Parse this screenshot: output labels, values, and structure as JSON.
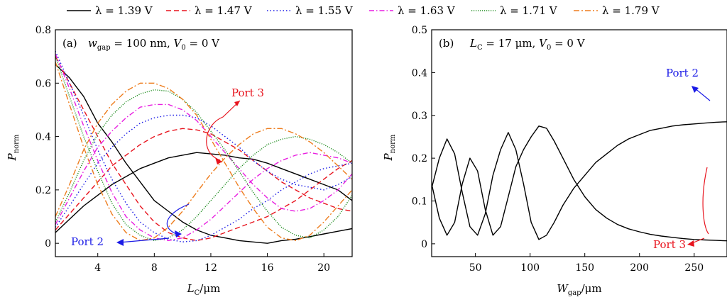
{
  "legend": {
    "items": [
      {
        "label": "λ = 1.39 V",
        "color": "#000000",
        "dash": "solid"
      },
      {
        "label": "λ = 1.47 V",
        "color": "#e8141e",
        "dash": "dash"
      },
      {
        "label": "λ = 1.55 V",
        "color": "#1a1ae6",
        "dash": "dot"
      },
      {
        "label": "λ = 1.63 V",
        "color": "#e81ee0",
        "dash": "dashdot"
      },
      {
        "label": "λ = 1.71 V",
        "color": "#1e8c1e",
        "dash": "densedot"
      },
      {
        "label": "λ = 1.79 V",
        "color": "#ee7d1e",
        "dash": "dashdot2"
      }
    ]
  },
  "chart_data": [
    {
      "type": "line",
      "panel_label": "(a)",
      "panel_text": "w_gap = 100 nm, V_0 = 0 V",
      "xlabel": "L_C/μm",
      "ylabel": "P_norm",
      "xlim": [
        1,
        22
      ],
      "ylim": [
        -0.05,
        0.8
      ],
      "xticks": [
        "4",
        "8",
        "12",
        "16",
        "20"
      ],
      "yticks": [
        "0",
        "0.2",
        "0.4",
        "0.6",
        "0.8"
      ],
      "annotations": [
        {
          "text": "Port 3",
          "color": "#e8141e"
        },
        {
          "text": "Port 2",
          "color": "#1a1ae6"
        }
      ],
      "x": [
        1,
        2,
        3,
        4,
        5,
        6,
        7,
        8,
        9,
        10,
        11,
        12,
        13,
        14,
        15,
        16,
        17,
        18,
        19,
        20,
        21,
        22
      ],
      "series": [
        {
          "port": "Port 3",
          "values": [
            0.04,
            0.09,
            0.14,
            0.18,
            0.22,
            0.25,
            0.28,
            0.3,
            0.32,
            0.33,
            0.34,
            0.335,
            0.33,
            0.32,
            0.315,
            0.3,
            0.28,
            0.26,
            0.24,
            0.22,
            0.2,
            0.16
          ]
        },
        {
          "port": "Port 2",
          "values": [
            0.67,
            0.62,
            0.55,
            0.45,
            0.38,
            0.3,
            0.23,
            0.16,
            0.12,
            0.08,
            0.05,
            0.03,
            0.02,
            0.01,
            0.005,
            0.0,
            0.01,
            0.015,
            0.025,
            0.035,
            0.045,
            0.055
          ]
        },
        {
          "port": "Port 3",
          "values": [
            0.05,
            0.11,
            0.17,
            0.23,
            0.29,
            0.33,
            0.37,
            0.4,
            0.42,
            0.43,
            0.425,
            0.41,
            0.38,
            0.35,
            0.31,
            0.27,
            0.23,
            0.2,
            0.17,
            0.15,
            0.13,
            0.12
          ]
        },
        {
          "port": "Port 2",
          "values": [
            0.7,
            0.6,
            0.5,
            0.4,
            0.3,
            0.22,
            0.14,
            0.08,
            0.04,
            0.02,
            0.01,
            0.02,
            0.04,
            0.06,
            0.08,
            0.1,
            0.13,
            0.16,
            0.2,
            0.24,
            0.28,
            0.31
          ]
        },
        {
          "port": "Port 3",
          "values": [
            0.06,
            0.14,
            0.22,
            0.3,
            0.36,
            0.41,
            0.45,
            0.47,
            0.48,
            0.48,
            0.47,
            0.44,
            0.4,
            0.36,
            0.31,
            0.27,
            0.24,
            0.22,
            0.21,
            0.2,
            0.22,
            0.25
          ]
        },
        {
          "port": "Port 2",
          "values": [
            0.72,
            0.6,
            0.48,
            0.35,
            0.24,
            0.15,
            0.08,
            0.04,
            0.015,
            0.005,
            0.01,
            0.03,
            0.06,
            0.09,
            0.13,
            0.16,
            0.2,
            0.23,
            0.26,
            0.28,
            0.29,
            0.3
          ]
        },
        {
          "port": "Port 3",
          "values": [
            0.07,
            0.17,
            0.27,
            0.36,
            0.42,
            0.47,
            0.51,
            0.52,
            0.52,
            0.5,
            0.46,
            0.4,
            0.34,
            0.28,
            0.22,
            0.17,
            0.13,
            0.12,
            0.13,
            0.16,
            0.2,
            0.26
          ]
        },
        {
          "port": "Port 2",
          "values": [
            0.71,
            0.58,
            0.44,
            0.31,
            0.19,
            0.1,
            0.05,
            0.02,
            0.01,
            0.02,
            0.05,
            0.09,
            0.14,
            0.19,
            0.24,
            0.28,
            0.31,
            0.33,
            0.34,
            0.33,
            0.32,
            0.3
          ]
        },
        {
          "port": "Port 3",
          "values": [
            0.08,
            0.19,
            0.31,
            0.41,
            0.48,
            0.53,
            0.56,
            0.575,
            0.57,
            0.54,
            0.49,
            0.42,
            0.35,
            0.27,
            0.19,
            0.12,
            0.06,
            0.03,
            0.02,
            0.05,
            0.1,
            0.18
          ]
        },
        {
          "port": "Port 2",
          "values": [
            0.7,
            0.55,
            0.4,
            0.27,
            0.15,
            0.07,
            0.03,
            0.01,
            0.02,
            0.05,
            0.1,
            0.16,
            0.22,
            0.28,
            0.33,
            0.37,
            0.39,
            0.4,
            0.39,
            0.37,
            0.34,
            0.3
          ]
        },
        {
          "port": "Port 3",
          "values": [
            0.1,
            0.22,
            0.35,
            0.45,
            0.52,
            0.57,
            0.6,
            0.6,
            0.58,
            0.54,
            0.48,
            0.39,
            0.3,
            0.21,
            0.13,
            0.06,
            0.02,
            0.01,
            0.03,
            0.08,
            0.14,
            0.2
          ]
        },
        {
          "port": "Port 2",
          "values": [
            0.68,
            0.52,
            0.36,
            0.22,
            0.11,
            0.04,
            0.01,
            0.02,
            0.06,
            0.12,
            0.19,
            0.26,
            0.32,
            0.37,
            0.41,
            0.43,
            0.43,
            0.41,
            0.38,
            0.34,
            0.29,
            0.24
          ]
        }
      ]
    },
    {
      "type": "line",
      "panel_label": "(b)",
      "panel_text": "L_C = 17 μm, V_0 = 0 V",
      "xlabel": "W_gap/μm",
      "ylabel": "P_norm",
      "xlim": [
        10,
        280
      ],
      "ylim": [
        -0.03,
        0.5
      ],
      "xticks": [
        "50",
        "100",
        "150",
        "200",
        "250"
      ],
      "yticks": [
        "0",
        "0.1",
        "0.2",
        "0.3",
        "0.4",
        "0.5"
      ],
      "annotations": [
        {
          "text": "Port 2",
          "color": "#1a1ae6"
        },
        {
          "text": "Port 3",
          "color": "#e8141e"
        }
      ],
      "series": [
        {
          "port": "Port 3",
          "x": [
            10,
            17,
            24,
            31,
            38,
            45,
            52,
            59,
            66,
            73,
            80,
            87,
            94,
            101,
            108,
            115,
            122,
            130,
            140,
            150,
            160,
            170,
            180,
            190,
            200,
            210,
            220,
            230,
            240,
            250,
            260,
            270,
            280
          ],
          "values": [
            0.14,
            0.06,
            0.02,
            0.05,
            0.14,
            0.2,
            0.17,
            0.08,
            0.02,
            0.04,
            0.11,
            0.18,
            0.22,
            0.25,
            0.275,
            0.27,
            0.24,
            0.2,
            0.15,
            0.11,
            0.08,
            0.06,
            0.045,
            0.035,
            0.028,
            0.022,
            0.018,
            0.015,
            0.012,
            0.01,
            0.009,
            0.008,
            0.007
          ]
        },
        {
          "port": "Port 2",
          "x": [
            10,
            17,
            24,
            31,
            38,
            45,
            52,
            59,
            66,
            73,
            80,
            87,
            94,
            101,
            108,
            115,
            122,
            130,
            140,
            150,
            160,
            170,
            180,
            190,
            200,
            210,
            220,
            230,
            240,
            250,
            260,
            270,
            280
          ],
          "values": [
            0.13,
            0.2,
            0.245,
            0.21,
            0.12,
            0.04,
            0.02,
            0.07,
            0.16,
            0.22,
            0.26,
            0.22,
            0.14,
            0.05,
            0.01,
            0.02,
            0.05,
            0.09,
            0.13,
            0.16,
            0.19,
            0.21,
            0.23,
            0.245,
            0.255,
            0.265,
            0.27,
            0.275,
            0.278,
            0.28,
            0.282,
            0.284,
            0.285
          ]
        }
      ]
    }
  ]
}
